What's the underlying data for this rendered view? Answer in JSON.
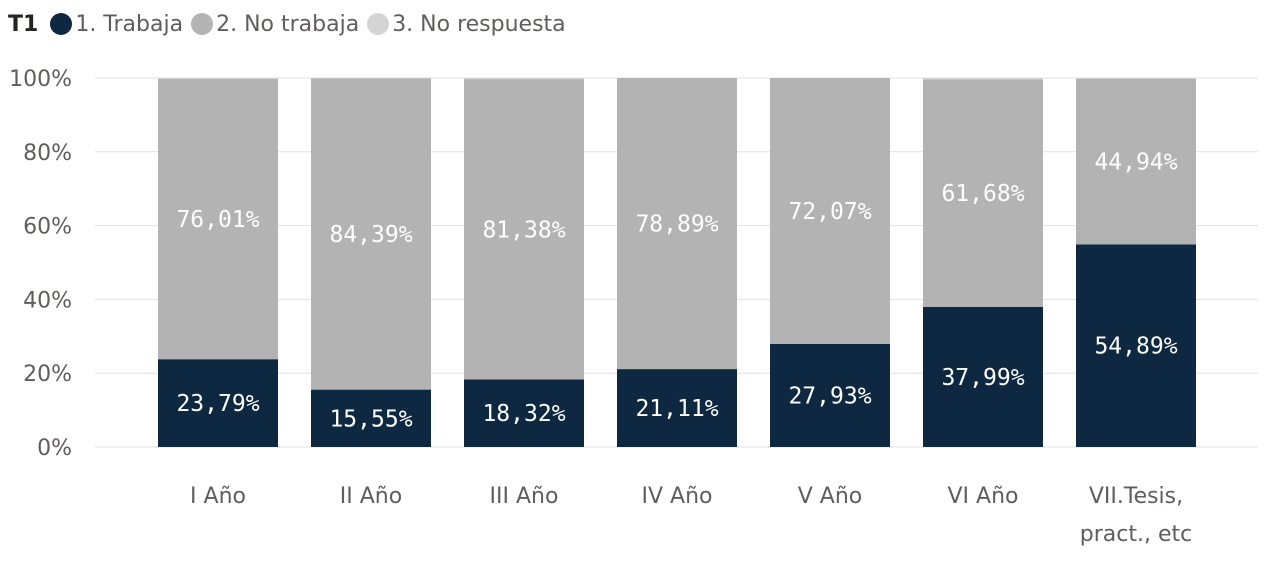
{
  "chart_data": {
    "type": "bar",
    "stacked": true,
    "legend_title": "T1",
    "legend_position": "top-left",
    "categories": [
      [
        "I Año"
      ],
      [
        "II Año"
      ],
      [
        "III Año"
      ],
      [
        "IV Año"
      ],
      [
        "V Año"
      ],
      [
        "VI Año"
      ],
      [
        "VII.Tesis,",
        "pract., etc"
      ]
    ],
    "series": [
      {
        "name": "1. Trabaja",
        "color": "#0e2841",
        "values": [
          23.79,
          15.55,
          18.32,
          21.11,
          27.93,
          37.99,
          54.89
        ],
        "labels": [
          "23,79%",
          "15,55%",
          "18,32%",
          "21,11%",
          "27,93%",
          "37,99%",
          "54,89%"
        ]
      },
      {
        "name": "2. No trabaja",
        "color": "#b3b3b3",
        "values": [
          76.01,
          84.39,
          81.38,
          78.89,
          72.07,
          61.68,
          44.94
        ],
        "labels": [
          "76,01%",
          "84,39%",
          "81,38%",
          "78,89%",
          "72,07%",
          "61,68%",
          "44,94%"
        ]
      },
      {
        "name": "3. No respuesta",
        "color": "#d4d4d4",
        "values": [
          0.2,
          0.06,
          0.3,
          0,
          0,
          0.33,
          0.17
        ],
        "labels": []
      }
    ],
    "y_ticks": [
      "0%",
      "20%",
      "40%",
      "60%",
      "80%",
      "100%"
    ],
    "ylim": [
      0,
      100
    ],
    "grid": true
  }
}
